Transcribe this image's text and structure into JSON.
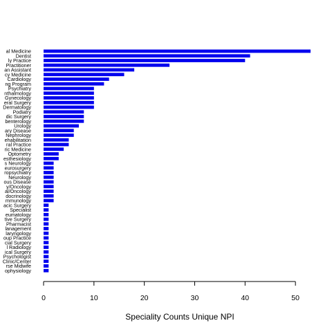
{
  "chart_data": {
    "type": "bar",
    "orientation": "horizontal",
    "bar_color": "#0000ee",
    "xlabel": "Speciality Counts Unique NPI",
    "xlim": [
      0,
      53
    ],
    "xticks": [
      "0",
      "10",
      "20",
      "30",
      "40",
      "50"
    ],
    "grid": false,
    "categories": [
      "al Medicine",
      "Dentist",
      "ly Practice",
      "Practitioner",
      "an Assistant",
      "cy Medicine",
      "Cardiology",
      "ng Program",
      "Psychiatry",
      "nthalmology",
      "Gynecology",
      "eral Surgery",
      "Dermatology",
      "Podiatry",
      "dic Surgery",
      "benterology",
      "Urology",
      "ary Disease",
      "Nephrology",
      "ehabilitation",
      "ral Practice",
      "ric Medicine",
      "Optometry",
      "esthesiology",
      "s Neurology",
      "eurosurgery",
      "ropsychiatry",
      "Neurology",
      "ous Disease",
      "y/Oncology",
      "al/Oncology",
      "docrinology",
      "mmunology",
      "acic Surgery",
      "Specialist",
      "eumatology",
      "tive Surgery",
      "Pharmacist",
      "lanagement",
      "laryngology",
      "oup Practice",
      "cial Surgery",
      "l Radiology",
      "ical Surgery",
      "Psychologist",
      "Clinic/Center",
      "rse Midwife",
      "ophysiology"
    ],
    "values": [
      53,
      41,
      40,
      25,
      18,
      16,
      13,
      12,
      10,
      10,
      10,
      10,
      10,
      8,
      8,
      8,
      7,
      6,
      6,
      5,
      5,
      4,
      3,
      3,
      2,
      2,
      2,
      2,
      2,
      2,
      2,
      2,
      2,
      1,
      1,
      1,
      1,
      1,
      1,
      1,
      1,
      1,
      1,
      1,
      1,
      1,
      1,
      1
    ]
  }
}
